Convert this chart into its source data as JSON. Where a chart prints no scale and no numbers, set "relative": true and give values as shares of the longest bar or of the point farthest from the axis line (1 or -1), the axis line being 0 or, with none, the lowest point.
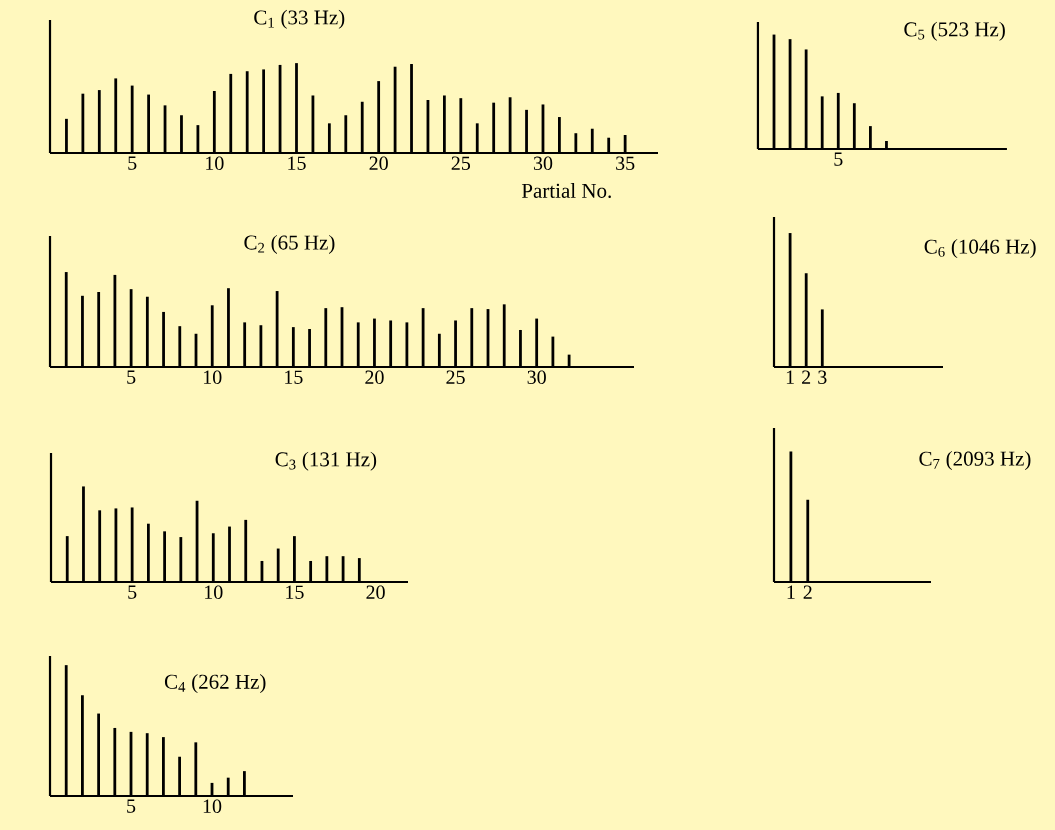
{
  "chart_data": [
    {
      "type": "bar",
      "relative": true,
      "title": "C$_{1}$ (33 Hz)",
      "xlabel": "Partial No.",
      "color": "#000000",
      "xlim": [
        0,
        37
      ],
      "xticks": [
        5,
        10,
        15,
        20,
        25,
        30,
        35
      ],
      "x": [
        1,
        2,
        3,
        4,
        5,
        6,
        7,
        8,
        9,
        10,
        11,
        12,
        13,
        14,
        15,
        16,
        17,
        18,
        19,
        20,
        21,
        22,
        23,
        24,
        25,
        26,
        27,
        28,
        29,
        30,
        31,
        32,
        33,
        34,
        35
      ],
      "values": [
        0.38,
        0.66,
        0.7,
        0.83,
        0.75,
        0.65,
        0.53,
        0.42,
        0.31,
        0.69,
        0.88,
        0.91,
        0.93,
        0.98,
        1,
        0.64,
        0.33,
        0.42,
        0.57,
        0.8,
        0.96,
        0.99,
        0.59,
        0.64,
        0.61,
        0.33,
        0.56,
        0.62,
        0.48,
        0.54,
        0.4,
        0.22,
        0.27,
        0.17,
        0.2
      ]
    },
    {
      "type": "bar",
      "relative": true,
      "title": "C$_{2}$ (65 Hz)",
      "color": "#000000",
      "xlim": [
        0,
        36
      ],
      "xticks": [
        5,
        10,
        15,
        20,
        25,
        30
      ],
      "x": [
        1,
        2,
        3,
        4,
        5,
        6,
        7,
        8,
        9,
        10,
        11,
        12,
        13,
        14,
        15,
        16,
        17,
        18,
        19,
        20,
        21,
        22,
        23,
        24,
        25,
        26,
        27,
        28,
        29,
        30,
        31,
        32
      ],
      "values": [
        1,
        0.75,
        0.79,
        0.97,
        0.82,
        0.74,
        0.58,
        0.43,
        0.35,
        0.65,
        0.83,
        0.47,
        0.44,
        0.8,
        0.42,
        0.4,
        0.62,
        0.63,
        0.47,
        0.51,
        0.49,
        0.47,
        0.62,
        0.35,
        0.49,
        0.62,
        0.61,
        0.66,
        0.39,
        0.51,
        0.32,
        0.13
      ]
    },
    {
      "type": "bar",
      "relative": true,
      "title": "C$_{3}$ (131 Hz)",
      "color": "#000000",
      "xlim": [
        0,
        22
      ],
      "xticks": [
        5,
        10,
        15,
        20
      ],
      "x": [
        1,
        2,
        3,
        4,
        5,
        6,
        7,
        8,
        9,
        10,
        11,
        12,
        13,
        14,
        15,
        16,
        17,
        18,
        19
      ],
      "values": [
        0.48,
        1,
        0.75,
        0.77,
        0.78,
        0.61,
        0.53,
        0.47,
        0.85,
        0.51,
        0.58,
        0.65,
        0.22,
        0.35,
        0.48,
        0.22,
        0.27,
        0.27,
        0.25
      ]
    },
    {
      "type": "bar",
      "relative": true,
      "title": "C$_{4}$ (262 Hz)",
      "color": "#000000",
      "xlim": [
        0,
        15
      ],
      "xticks": [
        5,
        10
      ],
      "x": [
        1,
        2,
        3,
        4,
        5,
        6,
        7,
        8,
        9,
        10,
        11,
        12
      ],
      "values": [
        1,
        0.77,
        0.63,
        0.52,
        0.49,
        0.48,
        0.45,
        0.3,
        0.41,
        0.1,
        0.14,
        0.19
      ]
    },
    {
      "type": "bar",
      "relative": true,
      "title": "C$_{5}$ (523 Hz)",
      "color": "#000000",
      "categories": [
        null,
        null,
        null,
        null,
        "5",
        null,
        null,
        null
      ],
      "values": [
        1,
        0.96,
        0.87,
        0.46,
        0.49,
        0.4,
        0.2,
        0.07
      ]
    },
    {
      "type": "bar",
      "relative": true,
      "title": "C$_{6}$ (1046 Hz)",
      "color": "#000000",
      "xlim": [
        0,
        10.5
      ],
      "xticks": [
        1,
        2,
        3
      ],
      "x": [
        1,
        2,
        3
      ],
      "values": [
        1,
        0.7,
        0.43
      ]
    },
    {
      "type": "bar",
      "relative": true,
      "title": "C$_{7}$ (2093 Hz)",
      "color": "#000000",
      "xlim": [
        0,
        9.3
      ],
      "xticks": [
        1,
        2
      ],
      "x": [
        1,
        2
      ],
      "values": [
        1,
        0.63
      ]
    }
  ]
}
